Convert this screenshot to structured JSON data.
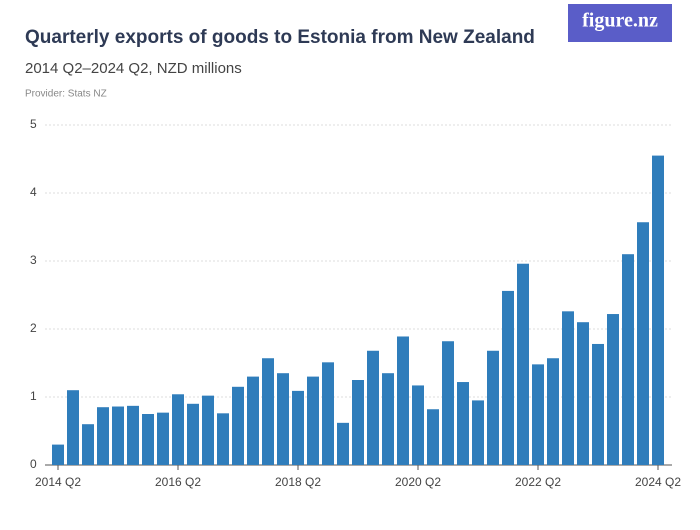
{
  "chart_data": {
    "type": "bar",
    "title": "Quarterly exports of goods to Estonia from New Zealand",
    "subtitle": "2014 Q2–2024 Q2, NZD millions",
    "source": "Provider: Stats NZ",
    "logo": "figure.nz",
    "categories": [
      "2014 Q2",
      null,
      null,
      null,
      null,
      null,
      null,
      null,
      "2016 Q2",
      null,
      null,
      null,
      null,
      null,
      null,
      null,
      "2018 Q2",
      null,
      null,
      null,
      null,
      null,
      null,
      null,
      "2020 Q2",
      null,
      null,
      null,
      null,
      null,
      null,
      null,
      "2022 Q2",
      null,
      null,
      null,
      null,
      null,
      null,
      null,
      "2024 Q2"
    ],
    "values": [
      0.3,
      1.1,
      0.6,
      0.85,
      0.86,
      0.87,
      0.75,
      0.77,
      1.04,
      0.9,
      1.02,
      0.76,
      1.15,
      1.3,
      1.57,
      1.35,
      1.09,
      1.3,
      1.51,
      0.62,
      1.25,
      1.68,
      1.35,
      1.89,
      1.17,
      0.82,
      1.82,
      1.22,
      0.95,
      1.68,
      2.56,
      2.96,
      1.48,
      1.57,
      2.26,
      2.1,
      1.78,
      2.22,
      3.1,
      3.57,
      4.55
    ],
    "color": "#2f7dbb",
    "ylim": [
      0,
      5
    ],
    "yticks": [
      0,
      1,
      2,
      3,
      4,
      5
    ],
    "grid": true
  }
}
